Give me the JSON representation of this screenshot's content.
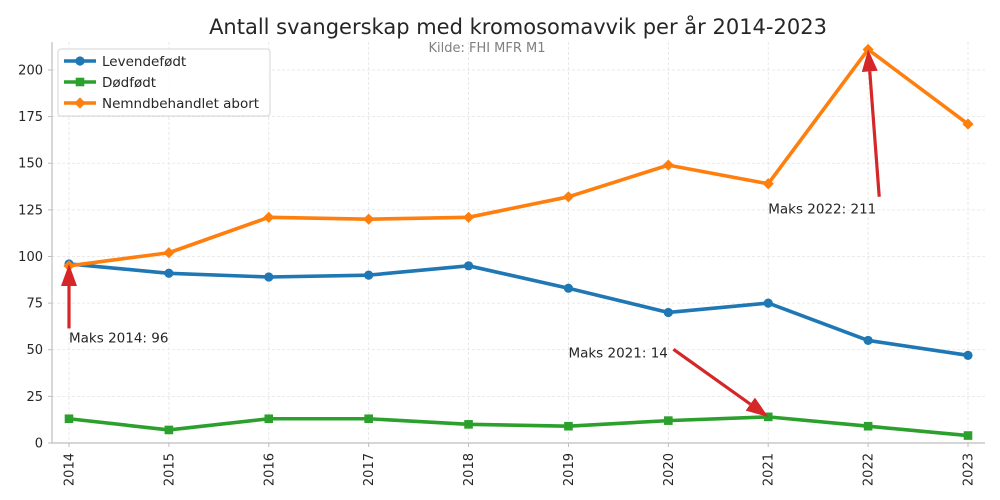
{
  "chart_data": {
    "type": "line",
    "title": "Antall svangerskap med kromosomavvik per år 2014-2023",
    "subtitle": "Kilde: FHI MFR M1",
    "xlabel": "",
    "ylabel": "",
    "x": [
      "2014",
      "2015",
      "2016",
      "2017",
      "2018",
      "2019",
      "2020",
      "2021",
      "2022",
      "2023"
    ],
    "ylim": [
      0,
      215
    ],
    "yticks": [
      0,
      25,
      50,
      75,
      100,
      125,
      150,
      175,
      200
    ],
    "grid": true,
    "legend_position": "top-left",
    "series": [
      {
        "name": "Levendefødt",
        "color": "#1f77b4",
        "marker": "circle",
        "values": [
          96,
          91,
          89,
          90,
          95,
          83,
          70,
          75,
          55,
          47
        ]
      },
      {
        "name": "Dødfødt",
        "color": "#2ca02c",
        "marker": "square",
        "values": [
          13,
          7,
          13,
          13,
          10,
          9,
          12,
          14,
          9,
          4
        ]
      },
      {
        "name": "Nemndbehandlet abort",
        "color": "#ff7f0e",
        "marker": "diamond",
        "values": [
          95,
          102,
          121,
          120,
          121,
          132,
          149,
          139,
          211,
          171
        ]
      }
    ],
    "annotations": [
      {
        "text": "Maks 2014: 96",
        "point_x": "2014",
        "point_y": 96,
        "text_x": "2014",
        "text_y": 55,
        "color": "#d62728"
      },
      {
        "text": "Maks 2021: 14",
        "point_x": "2021",
        "point_y": 14,
        "text_x": "2019",
        "text_y": 47,
        "color": "#d62728"
      },
      {
        "text": "Maks 2022: 211",
        "point_x": "2022",
        "point_y": 211,
        "text_x": "2021",
        "text_y": 124,
        "color": "#d62728"
      }
    ]
  }
}
